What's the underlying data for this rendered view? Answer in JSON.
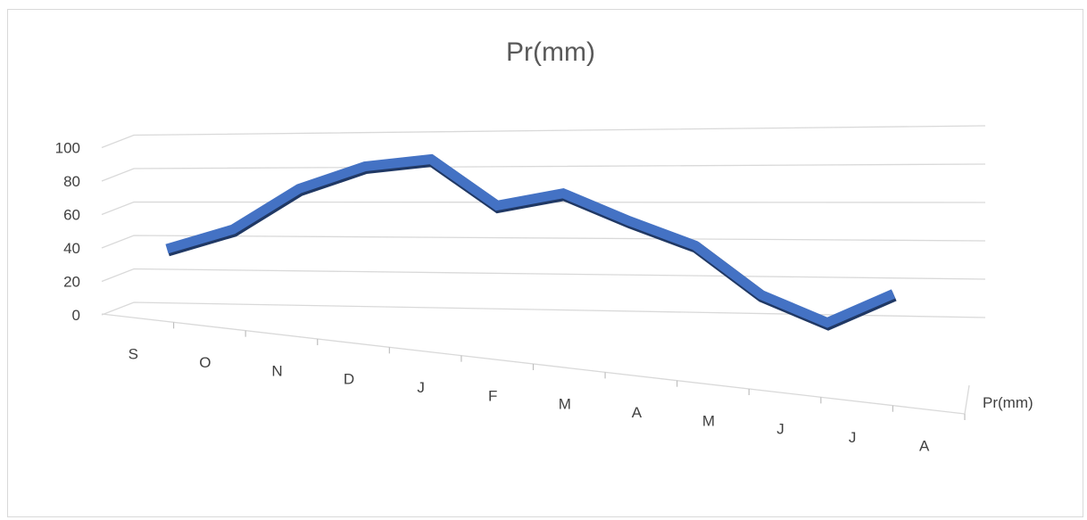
{
  "chart_data": {
    "type": "line",
    "title": "Pr(mm)",
    "categories": [
      "S",
      "O",
      "N",
      "D",
      "J",
      "F",
      "M",
      "A",
      "M",
      "J",
      "J",
      "A"
    ],
    "series": [
      {
        "name": "Pr(mm)",
        "values": [
          44,
          56,
          80,
          93,
          97,
          71,
          78,
          63,
          50,
          24,
          10,
          26
        ],
        "color": "#4472c4"
      }
    ],
    "yticks": [
      "0",
      "20",
      "40",
      "60",
      "80",
      "100"
    ],
    "ylim": [
      0,
      100
    ],
    "grid": true,
    "style": "3d-line",
    "depth_axis_label": "Pr(mm)",
    "legend": "none"
  }
}
